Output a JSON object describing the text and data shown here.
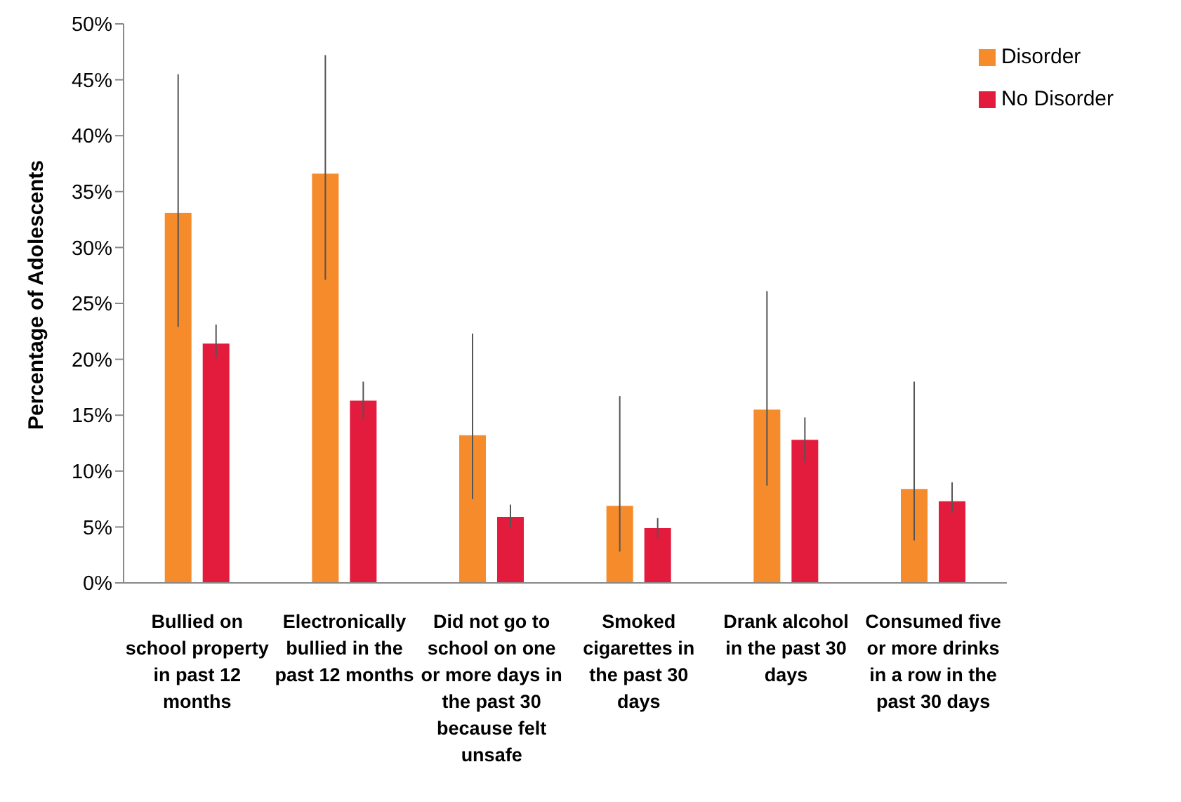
{
  "chart_data": {
    "type": "bar",
    "ylabel": "Percentage of Adolescents",
    "categories": [
      "Bullied on school property in past 12 months",
      "Electronically bullied in the past 12 months",
      "Did not go to school on one or more days in the past 30 because felt unsafe",
      "Smoked cigarettes in the past 30 days",
      "Drank alcohol in the past 30 days",
      "Consumed five or more drinks in a row in the past 30 days"
    ],
    "series": [
      {
        "name": "Disorder",
        "color": "#f68b2b",
        "values": [
          33.1,
          36.6,
          13.2,
          6.9,
          15.5,
          8.4
        ],
        "errors": [
          [
            22.9,
            45.5
          ],
          [
            27.1,
            47.2
          ],
          [
            7.5,
            22.3
          ],
          [
            2.8,
            16.7
          ],
          [
            8.7,
            26.1
          ],
          [
            3.8,
            18.0
          ]
        ]
      },
      {
        "name": "No Disorder",
        "color": "#e31c3d",
        "values": [
          21.4,
          16.3,
          5.9,
          4.9,
          12.8,
          7.3
        ],
        "errors": [
          [
            20.1,
            23.1
          ],
          [
            14.7,
            18.0
          ],
          [
            5.0,
            7.0
          ],
          [
            4.0,
            5.8
          ],
          [
            10.8,
            14.8
          ],
          [
            6.3,
            9.0
          ]
        ]
      }
    ],
    "ylim": [
      0,
      50
    ],
    "yticks": [
      {
        "value": 0,
        "label": "0%"
      },
      {
        "value": 5,
        "label": "5%"
      },
      {
        "value": 10,
        "label": "10%"
      },
      {
        "value": 15,
        "label": "15%"
      },
      {
        "value": 20,
        "label": "20%"
      },
      {
        "value": 25,
        "label": "25%"
      },
      {
        "value": 30,
        "label": "30%"
      },
      {
        "value": 35,
        "label": "35%"
      },
      {
        "value": 40,
        "label": "40%"
      },
      {
        "value": 45,
        "label": "45%"
      },
      {
        "value": 50,
        "label": "50%"
      }
    ],
    "grid": false,
    "legend": "top right"
  }
}
